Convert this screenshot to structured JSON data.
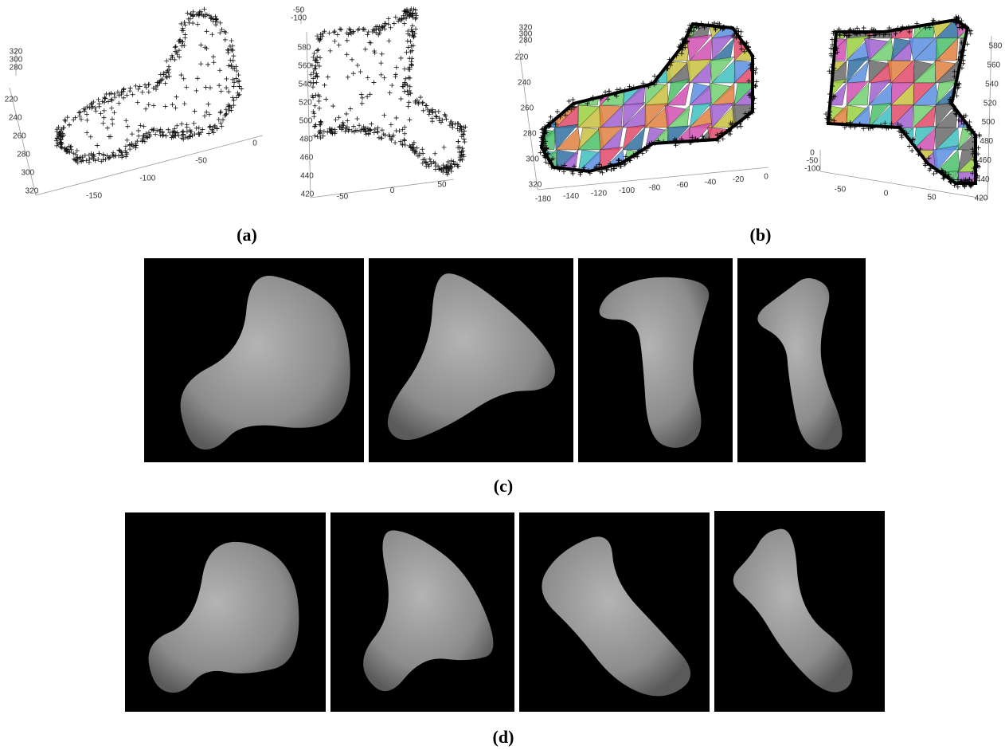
{
  "panels": [
    {
      "label": "(a)",
      "plots": [
        {
          "axes": [
            {
              "ticks": [
                "320",
                "300",
                "280"
              ]
            },
            {
              "ticks": [
                "220",
                "240",
                "260",
                "280",
                "300",
                "320"
              ]
            },
            {
              "ticks": [
                "-150",
                "-100",
                "-50",
                "0"
              ]
            }
          ]
        },
        {
          "axes": [
            {
              "ticks": [
                "-50",
                "-100"
              ]
            },
            {
              "ticks": [
                "580",
                "560",
                "540",
                "520",
                "500",
                "480",
                "460",
                "440",
                "420"
              ]
            },
            {
              "ticks": [
                "-50",
                "0",
                "50"
              ]
            }
          ]
        }
      ]
    },
    {
      "label": "(b)",
      "plots": [
        {
          "axes": [
            {
              "ticks": [
                "320",
                "300",
                "280"
              ]
            },
            {
              "ticks": [
                "220",
                "240",
                "260",
                "280",
                "300",
                "320"
              ]
            },
            {
              "ticks": [
                "-180",
                "-140",
                "-120",
                "-100",
                "-80",
                "-60",
                "-40",
                "-20",
                "0"
              ]
            }
          ]
        },
        {
          "axes": [
            {
              "ticks": [
                "580",
                "560",
                "540",
                "520",
                "500",
                "480",
                "460",
                "440",
                "420"
              ]
            },
            {
              "ticks": [
                "0",
                "-50",
                "-100"
              ]
            },
            {
              "ticks": [
                "-50",
                "0",
                "50"
              ]
            }
          ]
        }
      ]
    },
    {
      "label": "(c)"
    },
    {
      "label": "(d)"
    }
  ]
}
